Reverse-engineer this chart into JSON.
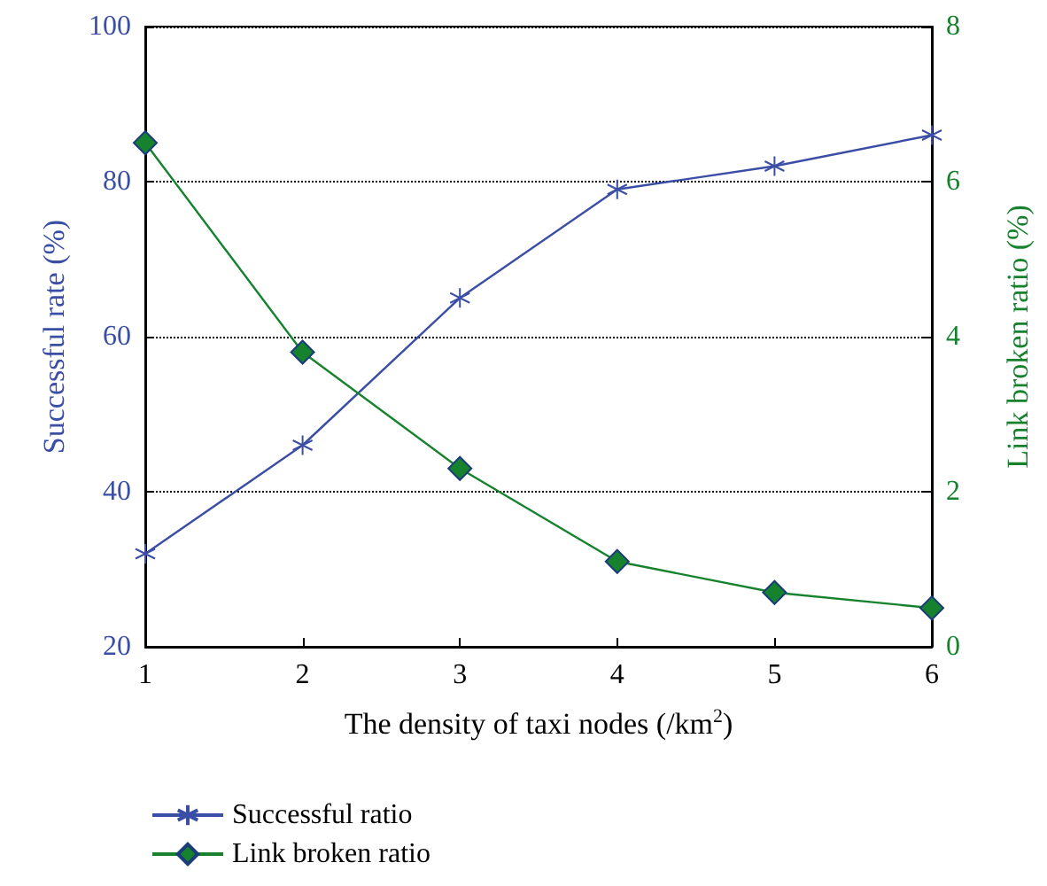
{
  "chart_data": {
    "type": "line",
    "xlabel": "The density of taxi nodes (/km$^{2}$)",
    "ylabel": "Successful rate (%)",
    "y2label": "Link broken ratio (%)",
    "x": [
      1,
      2,
      3,
      4,
      5,
      6
    ],
    "xlim": [
      1,
      6
    ],
    "xticks": [
      1,
      2,
      3,
      4,
      5,
      6
    ],
    "ylim": [
      20,
      100
    ],
    "yticks": [
      20,
      40,
      60,
      80,
      100
    ],
    "y2lim": [
      0,
      8
    ],
    "y2ticks": [
      0,
      2,
      4,
      6,
      8
    ],
    "series": [
      {
        "name": "Successful ratio",
        "color": "#3b4ea6",
        "marker": "cross",
        "values": [
          32,
          46,
          65,
          79,
          82,
          86
        ]
      },
      {
        "name": "Link broken ratio",
        "color": "#17822e",
        "marker": "diamond",
        "axis": "y2",
        "values": [
          6.5,
          3.8,
          2.3,
          1.1,
          0.7,
          0.5
        ]
      }
    ],
    "grid": "y",
    "legend": "bottom"
  }
}
